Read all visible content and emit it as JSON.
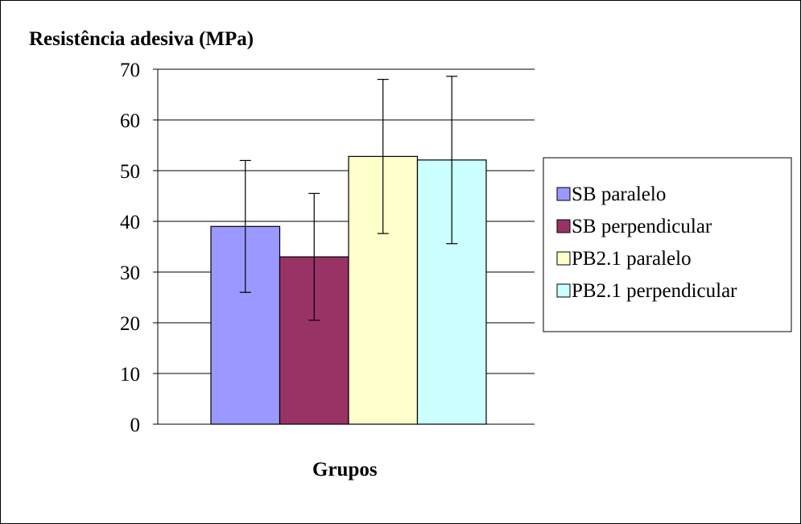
{
  "chart_data": {
    "type": "bar",
    "ylabel": "Resistência adesiva (MPa)",
    "xlabel": "Grupos",
    "ylim": [
      0,
      70
    ],
    "yticks": [
      0,
      10,
      20,
      30,
      40,
      50,
      60,
      70
    ],
    "grid": true,
    "legend_position": "right",
    "series": [
      {
        "name": "SB paralelo",
        "value": 39,
        "error": 13,
        "color": "#9999ff"
      },
      {
        "name": "SB perpendicular",
        "value": 33,
        "error": 12.5,
        "color": "#993366"
      },
      {
        "name": "PB2.1 paralelo",
        "value": 52.8,
        "error": 15.2,
        "color": "#ffffcc"
      },
      {
        "name": "PB2.1 perpendicular",
        "value": 52.1,
        "error": 16.5,
        "color": "#ccffff"
      }
    ]
  }
}
